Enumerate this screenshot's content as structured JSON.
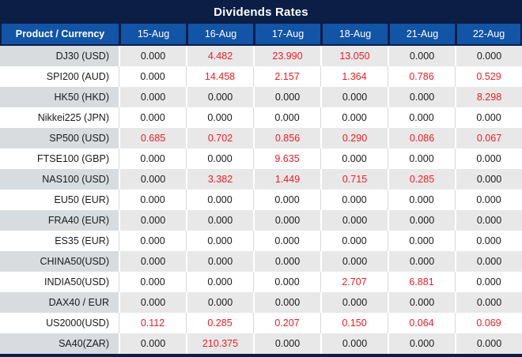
{
  "title": "Dividends Rates",
  "colors": {
    "navy": "#0c1e45",
    "header_blue": "#1254a6",
    "row_gray": "#e8e8e8",
    "product_gray": "#d9dcdf",
    "red": "#ee1c25",
    "text_black": "#1a1a1a"
  },
  "table": {
    "product_header": "Product / Currency",
    "date_headers": [
      "15-Aug",
      "16-Aug",
      "17-Aug",
      "18-Aug",
      "21-Aug",
      "22-Aug"
    ],
    "zero_display": "0.000",
    "rows": [
      {
        "product": "DJ30 (USD)",
        "values": [
          "0.000",
          "4.482",
          "23.990",
          "13.050",
          "0.000",
          "0.000"
        ]
      },
      {
        "product": "SPI200 (AUD)",
        "values": [
          "0.000",
          "14.458",
          "2.157",
          "1.364",
          "0.786",
          "0.529"
        ]
      },
      {
        "product": "HK50 (HKD)",
        "values": [
          "0.000",
          "0.000",
          "0.000",
          "0.000",
          "0.000",
          "8.298"
        ]
      },
      {
        "product": "Nikkei225 (JPN)",
        "values": [
          "0.000",
          "0.000",
          "0.000",
          "0.000",
          "0.000",
          "0.000"
        ]
      },
      {
        "product": "SP500 (USD)",
        "values": [
          "0.685",
          "0.702",
          "0.856",
          "0.290",
          "0.086",
          "0.067"
        ]
      },
      {
        "product": "FTSE100 (GBP)",
        "values": [
          "0.000",
          "0.000",
          "9.635",
          "0.000",
          "0.000",
          "0.000"
        ]
      },
      {
        "product": "NAS100 (USD)",
        "values": [
          "0.000",
          "3.382",
          "1.449",
          "0.715",
          "0.285",
          "0.000"
        ]
      },
      {
        "product": "EU50 (EUR)",
        "values": [
          "0.000",
          "0.000",
          "0.000",
          "0.000",
          "0.000",
          "0.000"
        ]
      },
      {
        "product": "FRA40 (EUR)",
        "values": [
          "0.000",
          "0.000",
          "0.000",
          "0.000",
          "0.000",
          "0.000"
        ]
      },
      {
        "product": "ES35 (EUR)",
        "values": [
          "0.000",
          "0.000",
          "0.000",
          "0.000",
          "0.000",
          "0.000"
        ]
      },
      {
        "product": "CHINA50(USD)",
        "values": [
          "0.000",
          "0.000",
          "0.000",
          "0.000",
          "0.000",
          "0.000"
        ]
      },
      {
        "product": "INDIA50(USD)",
        "values": [
          "0.000",
          "0.000",
          "0.000",
          "2.707",
          "6.881",
          "0.000"
        ]
      },
      {
        "product": "DAX40 / EUR",
        "values": [
          "0.000",
          "0.000",
          "0.000",
          "0.000",
          "0.000",
          "0.000"
        ]
      },
      {
        "product": "US2000(USD)",
        "values": [
          "0.112",
          "0.285",
          "0.207",
          "0.150",
          "0.064",
          "0.069"
        ]
      },
      {
        "product": "SA40(ZAR)",
        "values": [
          "0.000",
          "210.375",
          "0.000",
          "0.000",
          "0.000",
          "0.000"
        ]
      }
    ]
  }
}
